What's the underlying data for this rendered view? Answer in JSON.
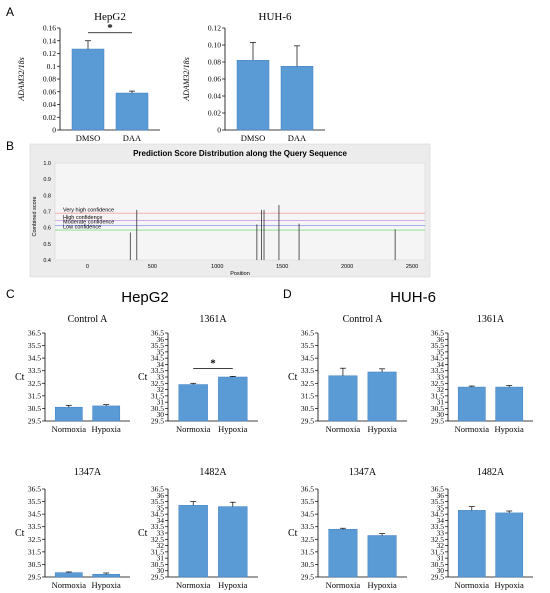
{
  "colors": {
    "bar": "#5b9bd5",
    "bar_edge": "#3f7fbf",
    "axis": "#000000",
    "panel_bg": "#ececec",
    "very_high": "#e8474f",
    "high": "#b55fd6",
    "moderate": "#3a3adf",
    "low": "#33cc33"
  },
  "panels": {
    "A": "A",
    "B": "B",
    "C": "C",
    "D": "D"
  },
  "headings": {
    "C": "HepG2",
    "D": "HUH-6"
  },
  "chart_data": [
    {
      "id": "A-HepG2",
      "type": "bar",
      "title": "HepG2",
      "ylabel": "ADAM32/18s",
      "categories": [
        "DMSO",
        "DAA"
      ],
      "values": [
        0.127,
        0.058
      ],
      "errors": [
        0.013,
        0.003
      ],
      "ylim": [
        0,
        0.16
      ],
      "yticks": [
        "0",
        "0.02",
        "0.04",
        "0.06",
        "0.08",
        "0.1",
        "0.12",
        "0.14",
        "0.16"
      ],
      "significance": "*"
    },
    {
      "id": "A-HUH6",
      "type": "bar",
      "title": "HUH-6",
      "ylabel": "ADAM32/18s",
      "categories": [
        "DMSO",
        "DAA"
      ],
      "values": [
        0.082,
        0.075
      ],
      "errors": [
        0.021,
        0.024
      ],
      "ylim": [
        0,
        0.12
      ],
      "yticks": [
        "0",
        "0.02",
        "0.04",
        "0.06",
        "0.08",
        "0.10",
        "0.12"
      ],
      "significance": ""
    },
    {
      "id": "B",
      "type": "bar",
      "title": "Prediction Score Distribution along the Query Sequence",
      "xlabel": "Position",
      "ylabel": "Combined score",
      "xlim": [
        -250,
        2600
      ],
      "ylim": [
        0.4,
        1.0
      ],
      "xticks": [
        0,
        500,
        1000,
        1500,
        2000,
        2500
      ],
      "yticks": [
        "0.4",
        "0.5",
        "0.6",
        "0.7",
        "0.8",
        "0.9",
        "1.0"
      ],
      "thresholds": [
        {
          "label": "Very high confidence",
          "value": 0.69,
          "color": "very_high"
        },
        {
          "label": "High confidence",
          "value": 0.645,
          "color": "high"
        },
        {
          "label": "Moderate confidence",
          "value": 0.615,
          "color": "moderate"
        },
        {
          "label": "Low confidence",
          "value": 0.585,
          "color": "low"
        }
      ],
      "points": [
        {
          "x": 330,
          "y": 0.57
        },
        {
          "x": 380,
          "y": 0.71
        },
        {
          "x": 1305,
          "y": 0.62
        },
        {
          "x": 1340,
          "y": 0.71
        },
        {
          "x": 1360,
          "y": 0.71
        },
        {
          "x": 1475,
          "y": 0.74
        },
        {
          "x": 1630,
          "y": 0.625
        },
        {
          "x": 2370,
          "y": 0.59
        }
      ]
    },
    {
      "id": "C-ControlA",
      "type": "bar",
      "title": "Control A",
      "ylabel": "Ct",
      "categories": [
        "Normoxia",
        "Hypoxia"
      ],
      "values": [
        30.6,
        30.7
      ],
      "errors": [
        0.15,
        0.1
      ],
      "ylim": [
        29.5,
        36.5
      ],
      "yticks": [
        "29.5",
        "30.5",
        "31.5",
        "32.5",
        "33.5",
        "34.5",
        "35.5",
        "36.5"
      ],
      "significance": ""
    },
    {
      "id": "C-1361A",
      "type": "bar",
      "title": "1361A",
      "ylabel": "Ct",
      "categories": [
        "Normoxia",
        "Hypoxia"
      ],
      "values": [
        32.4,
        33.0
      ],
      "errors": [
        0.1,
        0.05
      ],
      "ylim": [
        29.5,
        36.5
      ],
      "yticks": [
        "29.5",
        "30",
        "30.5",
        "31",
        "31.5",
        "32",
        "32.5",
        "33",
        "33.5",
        "34",
        "34.5",
        "35",
        "35.5",
        "36",
        "36.5"
      ],
      "significance": "*"
    },
    {
      "id": "C-1347A",
      "type": "bar",
      "title": "1347A",
      "ylabel": "Ct",
      "categories": [
        "Normoxia",
        "Hypoxia"
      ],
      "values": [
        29.85,
        29.72
      ],
      "errors": [
        0.05,
        0.1
      ],
      "ylim": [
        29.5,
        36.5
      ],
      "yticks": [
        "29.5",
        "30.5",
        "31.5",
        "32.5",
        "33.5",
        "34.5",
        "35.5",
        "36.5"
      ],
      "significance": ""
    },
    {
      "id": "C-1482A",
      "type": "bar",
      "title": "1482A",
      "ylabel": "Ct",
      "categories": [
        "Normoxia",
        "Hypoxia"
      ],
      "values": [
        35.2,
        35.1
      ],
      "errors": [
        0.3,
        0.35
      ],
      "ylim": [
        29.5,
        36.5
      ],
      "yticks": [
        "29.5",
        "30",
        "30.5",
        "31",
        "31.5",
        "32",
        "32.5",
        "33",
        "33.5",
        "34",
        "34.5",
        "35",
        "35.5",
        "36",
        "36.5"
      ],
      "significance": ""
    },
    {
      "id": "D-ControlA",
      "type": "bar",
      "title": "Control A",
      "ylabel": "Ct",
      "categories": [
        "Normoxia",
        "Hypoxia"
      ],
      "values": [
        33.1,
        33.4
      ],
      "errors": [
        0.6,
        0.25
      ],
      "ylim": [
        29.5,
        36.5
      ],
      "yticks": [
        "29.5",
        "30.5",
        "31.5",
        "32.5",
        "33.5",
        "34.5",
        "35.5",
        "36.5"
      ],
      "significance": ""
    },
    {
      "id": "D-1361A",
      "type": "bar",
      "title": "1361A",
      "ylabel": "",
      "categories": [
        "Normoxia",
        "Hypoxia"
      ],
      "values": [
        32.2,
        32.2
      ],
      "errors": [
        0.08,
        0.12
      ],
      "ylim": [
        29.5,
        36.5
      ],
      "yticks": [
        "29.5",
        "30",
        "30.5",
        "31",
        "31.5",
        "32",
        "32.5",
        "33",
        "33.5",
        "34",
        "34.5",
        "35",
        "35.5",
        "36",
        "36.5"
      ],
      "significance": ""
    },
    {
      "id": "D-1347A",
      "type": "bar",
      "title": "1347A",
      "ylabel": "Ct",
      "categories": [
        "Normoxia",
        "Hypoxia"
      ],
      "values": [
        33.3,
        32.8
      ],
      "errors": [
        0.08,
        0.15
      ],
      "ylim": [
        29.5,
        36.5
      ],
      "yticks": [
        "29.5",
        "30.5",
        "31.5",
        "32.5",
        "33.5",
        "34.5",
        "35.5",
        "36.5"
      ],
      "significance": ""
    },
    {
      "id": "D-1482A",
      "type": "bar",
      "title": "1482A",
      "ylabel": "",
      "categories": [
        "Normoxia",
        "Hypoxia"
      ],
      "values": [
        34.8,
        34.6
      ],
      "errors": [
        0.3,
        0.15
      ],
      "ylim": [
        29.5,
        36.5
      ],
      "yticks": [
        "29.5",
        "30",
        "30.5",
        "31",
        "31.5",
        "32",
        "32.5",
        "33",
        "33.5",
        "34",
        "34.5",
        "35",
        "35.5",
        "36",
        "36.5"
      ],
      "significance": ""
    }
  ]
}
